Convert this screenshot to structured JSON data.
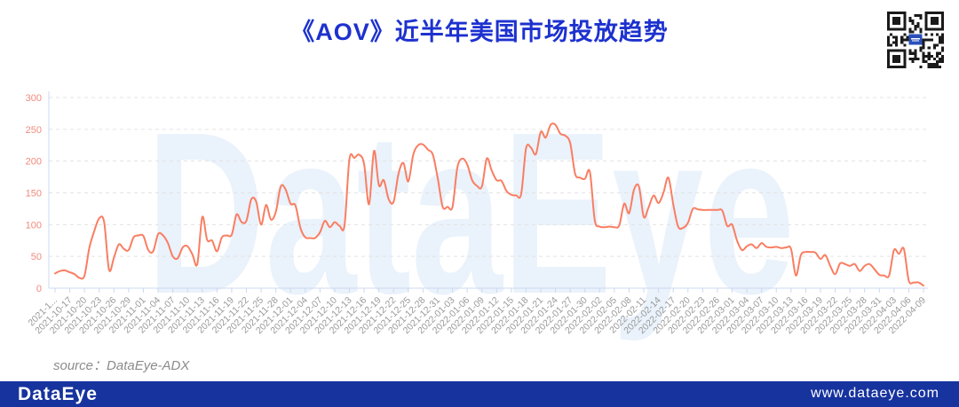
{
  "header": {
    "title": "《AOV》近半年美国市场投放趋势"
  },
  "source": {
    "label": "source：DataEye-ADX"
  },
  "footer": {
    "logo": "DataEye",
    "url": "www.dataeye.com"
  },
  "colors": {
    "title": "#1d31cf",
    "line": "#f97e62",
    "y_labels": "#f08a7c",
    "x_labels": "#999999",
    "grid": "#e3e3e3",
    "axis": "#ccd8f0",
    "watermark": "#eaf2fb",
    "footer_bg": "#16339e",
    "footer_text": "#ffffff",
    "source_text": "#8b8b8b",
    "qr_center": "#2a4fbb"
  },
  "chart_data": {
    "type": "line",
    "title": "《AOV》近半年美国市场投放趋势",
    "watermark": "DataEye",
    "x_start": "2021-10-14",
    "x_end": "2022-04-09",
    "x_interval": "daily",
    "xlabel": "",
    "ylabel": "",
    "ylim": [
      0,
      300
    ],
    "y_ticks": [
      0,
      50,
      100,
      150,
      200,
      250,
      300
    ],
    "grid": "horizontal-dashed",
    "legend": "none",
    "x_tick_labels": [
      "2021-1...",
      "2021-10-17",
      "2021-10-20",
      "2021-10-23",
      "2021-10-26",
      "2021-10-29",
      "2021-11-01",
      "2021-11-04",
      "2021-11-07",
      "2021-11-10",
      "2021-11-13",
      "2021-11-16",
      "2021-11-19",
      "2021-11-22",
      "2021-11-25",
      "2021-11-28",
      "2021-12-01",
      "2021-12-04",
      "2021-12-07",
      "2021-12-10",
      "2021-12-13",
      "2021-12-16",
      "2021-12-19",
      "2021-12-22",
      "2021-12-25",
      "2021-12-28",
      "2021-12-31",
      "2022-01-03",
      "2022-01-06",
      "2022-01-09",
      "2022-01-12",
      "2022-01-15",
      "2022-01-18",
      "2022-01-21",
      "2022-01-24",
      "2022-01-27",
      "2022-01-30",
      "2022-02-02",
      "2022-02-05",
      "2022-02-08",
      "2022-02-11",
      "2022-02-14",
      "2022-02-17",
      "2022-02-20",
      "2022-02-23",
      "2022-02-26",
      "2022-03-01",
      "2022-03-04",
      "2022-03-07",
      "2022-03-10",
      "2022-03-13",
      "2022-03-16",
      "2022-03-19",
      "2022-03-22",
      "2022-03-25",
      "2022-03-28",
      "2022-03-31",
      "2022-04-03",
      "2022-04-06",
      "2022-04-09"
    ],
    "values": [
      23,
      27,
      28,
      25,
      22,
      16,
      20,
      64,
      90,
      110,
      104,
      29,
      48,
      69,
      62,
      60,
      80,
      83,
      82,
      60,
      58,
      85,
      83,
      71,
      50,
      47,
      64,
      66,
      53,
      38,
      112,
      76,
      75,
      58,
      80,
      83,
      84,
      116,
      104,
      106,
      140,
      136,
      100,
      131,
      108,
      120,
      160,
      155,
      133,
      130,
      95,
      80,
      79,
      79,
      88,
      106,
      96,
      104,
      98,
      99,
      203,
      205,
      210,
      195,
      132,
      216,
      162,
      170,
      140,
      136,
      180,
      197,
      168,
      210,
      225,
      226,
      218,
      210,
      173,
      128,
      128,
      128,
      190,
      204,
      195,
      170,
      161,
      160,
      204,
      185,
      170,
      169,
      153,
      147,
      146,
      148,
      220,
      221,
      211,
      246,
      237,
      257,
      257,
      243,
      240,
      228,
      180,
      174,
      172,
      183,
      107,
      97,
      96,
      97,
      96,
      99,
      133,
      118,
      155,
      160,
      112,
      128,
      146,
      134,
      150,
      174,
      132,
      97,
      95,
      103,
      125,
      124,
      123,
      123,
      123,
      123,
      122,
      98,
      100,
      75,
      60,
      66,
      69,
      63,
      71,
      65,
      64,
      65,
      63,
      64,
      62,
      20,
      52,
      57,
      57,
      56,
      46,
      52,
      35,
      22,
      39,
      38,
      35,
      38,
      27,
      35,
      38,
      30,
      21,
      20,
      20,
      60,
      54,
      62,
      12,
      9,
      9,
      4
    ]
  }
}
